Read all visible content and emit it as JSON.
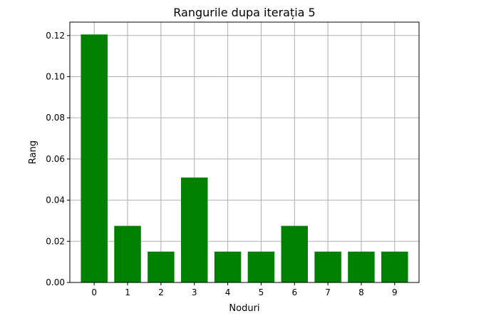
{
  "chart_data": {
    "type": "bar",
    "title": "Rangurile dupa iterația 5",
    "xlabel": "Noduri",
    "ylabel": "Rang",
    "categories": [
      "0",
      "1",
      "2",
      "3",
      "4",
      "5",
      "6",
      "7",
      "8",
      "9"
    ],
    "values": [
      0.1205,
      0.0275,
      0.015,
      0.051,
      0.015,
      0.015,
      0.0275,
      0.015,
      0.015,
      0.015
    ],
    "ylim": [
      0,
      0.1265
    ],
    "yticks": [
      0.0,
      0.02,
      0.04,
      0.06,
      0.08,
      0.1,
      0.12
    ],
    "ytick_labels": [
      "0.00",
      "0.02",
      "0.04",
      "0.06",
      "0.08",
      "0.10",
      "0.12"
    ],
    "grid": true,
    "bar_color": "#008000",
    "grid_color": "#b0b0b0"
  }
}
